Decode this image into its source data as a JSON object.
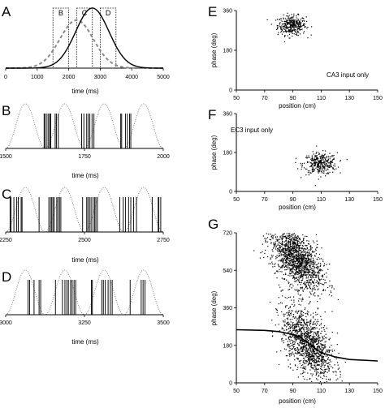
{
  "chart_data": [
    {
      "panel": "A",
      "type": "line",
      "xlim": [
        0,
        5000
      ],
      "ylim": [
        0,
        1
      ],
      "xticks": [
        "0",
        "1000",
        "2000",
        "3000",
        "4000",
        "5000"
      ],
      "xlabel": "time (ms)",
      "series": [
        {
          "style": "dashed-gray",
          "center": 2250,
          "width": 750,
          "peak": 0.8
        },
        {
          "style": "solid-black",
          "center": 2750,
          "width": 750,
          "peak": 1.0
        }
      ],
      "windows": [
        {
          "label": "B",
          "x": [
            1500,
            2000
          ]
        },
        {
          "label": "C",
          "x": [
            2250,
            2750
          ]
        },
        {
          "label": "D",
          "x": [
            3000,
            3500
          ]
        }
      ]
    },
    {
      "panel": "B",
      "type": "raster",
      "xlim": [
        1500,
        2000
      ],
      "xticks": [
        "1500",
        "1750",
        "2000"
      ],
      "xlabel": "time (ms)",
      "theta_period_ms": 125,
      "spikes": [
        1622,
        1625,
        1631,
        1636,
        1640,
        1643,
        1657,
        1661,
        1667,
        1741,
        1748,
        1757,
        1762,
        1767,
        1774,
        1780,
        1865,
        1868,
        1880,
        1886,
        1893,
        1897
      ]
    },
    {
      "panel": "C",
      "type": "raster",
      "xlim": [
        2250,
        2750
      ],
      "xticks": [
        "2250",
        "2500",
        "2750"
      ],
      "xlabel": "time (ms)",
      "theta_period_ms": 125,
      "spikes": [
        2264,
        2267,
        2276,
        2285,
        2290,
        2299,
        2302,
        2356,
        2387,
        2392,
        2396,
        2400,
        2404,
        2412,
        2416,
        2421,
        2425,
        2494,
        2507,
        2511,
        2516,
        2521,
        2527,
        2532,
        2536,
        2541,
        2612,
        2623,
        2630,
        2640,
        2647,
        2656,
        2665,
        2715,
        2734,
        2736,
        2742
      ]
    },
    {
      "panel": "D",
      "type": "raster",
      "xlim": [
        3000,
        3500
      ],
      "xticks": [
        "3000",
        "3250",
        "3500"
      ],
      "xlabel": "time (ms)",
      "theta_period_ms": 125,
      "spikes": [
        3071,
        3076,
        3090,
        3106,
        3111,
        3158,
        3180,
        3188,
        3194,
        3199,
        3206,
        3211,
        3217,
        3222,
        3272,
        3275,
        3305,
        3310,
        3316,
        3325,
        3332,
        3338,
        3395,
        3430,
        3436,
        3442
      ]
    },
    {
      "panel": "E",
      "type": "scatter",
      "xlim": [
        50,
        150
      ],
      "ylim": [
        0,
        360
      ],
      "xticks": [
        "50",
        "70",
        "90",
        "110",
        "130",
        "150"
      ],
      "yticks": [
        "0",
        "180",
        "360"
      ],
      "xlabel": "position (cm)",
      "ylabel": "phase (deg)",
      "annotation": "CA3 input only",
      "clusters": [
        {
          "cx": 89,
          "cy": 295,
          "sx": 5.0,
          "sy": 22,
          "n": 360
        }
      ]
    },
    {
      "panel": "F",
      "type": "scatter",
      "xlim": [
        50,
        150
      ],
      "ylim": [
        0,
        360
      ],
      "xticks": [
        "50",
        "70",
        "90",
        "110",
        "130",
        "150"
      ],
      "yticks": [
        "0",
        "180",
        "360"
      ],
      "xlabel": "position (cm)",
      "ylabel": "phase (deg)",
      "annotation": "EC3 input only",
      "clusters": [
        {
          "cx": 109,
          "cy": 130,
          "sx": 6.0,
          "sy": 25,
          "n": 340
        }
      ]
    },
    {
      "panel": "G",
      "type": "scatter",
      "xlim": [
        50,
        150
      ],
      "ylim": [
        0,
        720
      ],
      "xticks": [
        "50",
        "70",
        "90",
        "110",
        "130",
        "150"
      ],
      "yticks": [
        "0",
        "180",
        "360",
        "540",
        "720"
      ],
      "xlabel": "position (cm)",
      "ylabel": "phase (deg)",
      "clusters": [
        {
          "cx": 92,
          "cy": 600,
          "sx": 9,
          "sy": 65,
          "n": 1500,
          "slope": -4.5
        },
        {
          "cx": 100,
          "cy": 190,
          "sx": 9,
          "sy": 75,
          "n": 1300,
          "slope": -5.0
        }
      ],
      "fit_line": {
        "x": [
          50,
          70,
          80,
          90,
          95,
          100,
          105,
          110,
          120,
          130,
          150
        ],
        "y": [
          255,
          252,
          246,
          232,
          218,
          196,
          168,
          145,
          124,
          112,
          105
        ]
      }
    }
  ]
}
